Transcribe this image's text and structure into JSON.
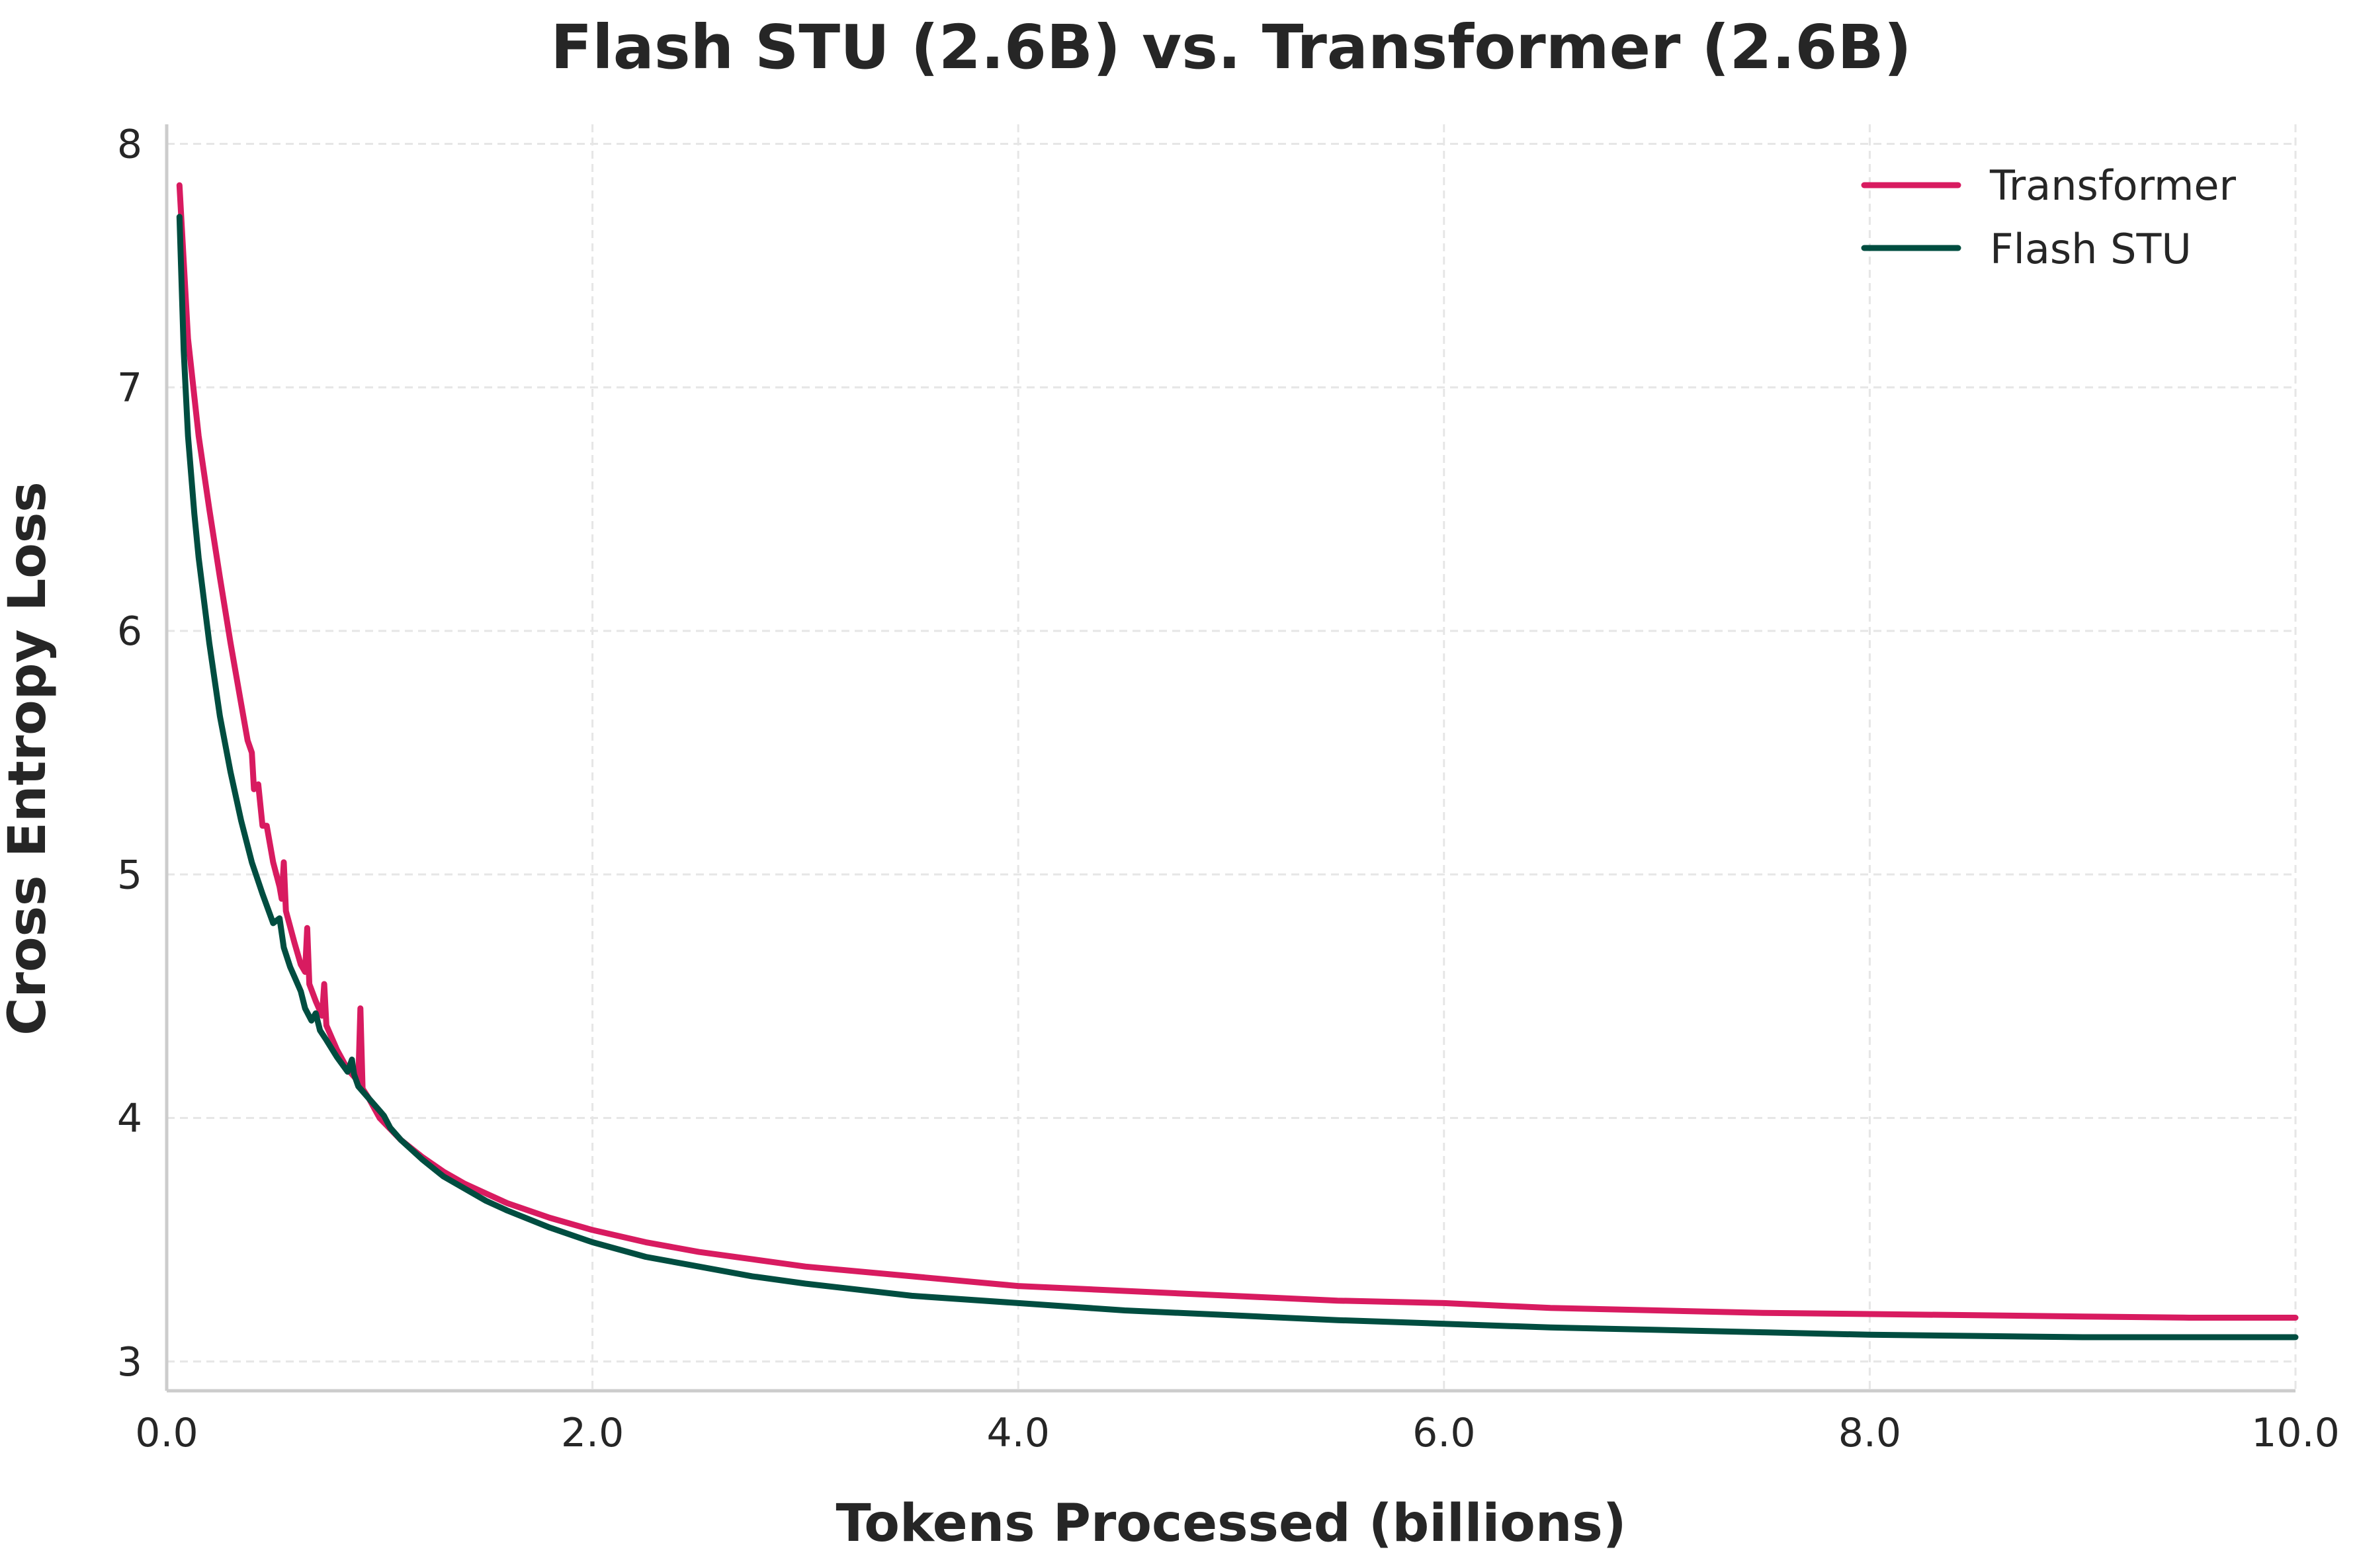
{
  "chart_data": {
    "type": "line",
    "title": "Flash STU (2.6B) vs. Transformer (2.6B)",
    "xlabel": "Tokens Processed (billions)",
    "ylabel": "Cross Entropy Loss",
    "xlim": [
      0,
      10
    ],
    "ylim": [
      2.88,
      8.08
    ],
    "xticks": [
      "0.0",
      "2.0",
      "4.0",
      "6.0",
      "8.0",
      "10.0"
    ],
    "xtick_values": [
      0,
      2,
      4,
      6,
      8,
      10
    ],
    "yticks": [
      "3",
      "4",
      "5",
      "6",
      "7",
      "8"
    ],
    "ytick_values": [
      3,
      4,
      5,
      6,
      7,
      8
    ],
    "grid": true,
    "legend_position": "top-right",
    "series": [
      {
        "name": "Transformer",
        "color": "#d81b60",
        "points": [
          [
            0.06,
            7.83
          ],
          [
            0.1,
            7.2
          ],
          [
            0.15,
            6.8
          ],
          [
            0.2,
            6.5
          ],
          [
            0.25,
            6.22
          ],
          [
            0.3,
            5.95
          ],
          [
            0.35,
            5.7
          ],
          [
            0.38,
            5.55
          ],
          [
            0.4,
            5.5
          ],
          [
            0.41,
            5.35
          ],
          [
            0.43,
            5.37
          ],
          [
            0.45,
            5.2
          ],
          [
            0.47,
            5.2
          ],
          [
            0.5,
            5.05
          ],
          [
            0.53,
            4.95
          ],
          [
            0.54,
            4.9
          ],
          [
            0.55,
            5.05
          ],
          [
            0.56,
            4.85
          ],
          [
            0.6,
            4.72
          ],
          [
            0.63,
            4.63
          ],
          [
            0.65,
            4.6
          ],
          [
            0.66,
            4.78
          ],
          [
            0.67,
            4.55
          ],
          [
            0.7,
            4.48
          ],
          [
            0.73,
            4.42
          ],
          [
            0.74,
            4.55
          ],
          [
            0.75,
            4.38
          ],
          [
            0.8,
            4.28
          ],
          [
            0.85,
            4.2
          ],
          [
            0.88,
            4.17
          ],
          [
            0.9,
            4.15
          ],
          [
            0.91,
            4.45
          ],
          [
            0.92,
            4.12
          ],
          [
            0.95,
            4.08
          ],
          [
            1.0,
            4.0
          ],
          [
            1.1,
            3.91
          ],
          [
            1.2,
            3.84
          ],
          [
            1.3,
            3.78
          ],
          [
            1.4,
            3.73
          ],
          [
            1.5,
            3.69
          ],
          [
            1.6,
            3.65
          ],
          [
            1.8,
            3.59
          ],
          [
            2.0,
            3.54
          ],
          [
            2.25,
            3.49
          ],
          [
            2.5,
            3.45
          ],
          [
            2.75,
            3.42
          ],
          [
            3.0,
            3.39
          ],
          [
            3.5,
            3.35
          ],
          [
            4.0,
            3.31
          ],
          [
            4.5,
            3.29
          ],
          [
            5.0,
            3.27
          ],
          [
            5.5,
            3.25
          ],
          [
            6.0,
            3.24
          ],
          [
            6.5,
            3.22
          ],
          [
            7.0,
            3.21
          ],
          [
            7.5,
            3.2
          ],
          [
            8.0,
            3.195
          ],
          [
            8.5,
            3.19
          ],
          [
            9.0,
            3.185
          ],
          [
            9.5,
            3.18
          ],
          [
            10.0,
            3.18
          ]
        ]
      },
      {
        "name": "Flash STU",
        "color": "#004d40",
        "points": [
          [
            0.06,
            7.7
          ],
          [
            0.08,
            7.15
          ],
          [
            0.1,
            6.8
          ],
          [
            0.13,
            6.48
          ],
          [
            0.15,
            6.3
          ],
          [
            0.2,
            5.95
          ],
          [
            0.25,
            5.65
          ],
          [
            0.3,
            5.42
          ],
          [
            0.35,
            5.22
          ],
          [
            0.4,
            5.05
          ],
          [
            0.45,
            4.92
          ],
          [
            0.5,
            4.8
          ],
          [
            0.53,
            4.82
          ],
          [
            0.55,
            4.7
          ],
          [
            0.58,
            4.62
          ],
          [
            0.6,
            4.58
          ],
          [
            0.63,
            4.52
          ],
          [
            0.65,
            4.45
          ],
          [
            0.68,
            4.4
          ],
          [
            0.7,
            4.43
          ],
          [
            0.72,
            4.36
          ],
          [
            0.75,
            4.32
          ],
          [
            0.8,
            4.25
          ],
          [
            0.85,
            4.19
          ],
          [
            0.87,
            4.24
          ],
          [
            0.88,
            4.18
          ],
          [
            0.9,
            4.13
          ],
          [
            0.95,
            4.08
          ],
          [
            1.0,
            4.03
          ],
          [
            1.02,
            4.01
          ],
          [
            1.05,
            3.96
          ],
          [
            1.1,
            3.91
          ],
          [
            1.2,
            3.83
          ],
          [
            1.3,
            3.76
          ],
          [
            1.4,
            3.71
          ],
          [
            1.5,
            3.66
          ],
          [
            1.6,
            3.62
          ],
          [
            1.8,
            3.55
          ],
          [
            2.0,
            3.49
          ],
          [
            2.25,
            3.43
          ],
          [
            2.5,
            3.39
          ],
          [
            2.75,
            3.35
          ],
          [
            3.0,
            3.32
          ],
          [
            3.5,
            3.27
          ],
          [
            4.0,
            3.24
          ],
          [
            4.5,
            3.21
          ],
          [
            5.0,
            3.19
          ],
          [
            5.5,
            3.17
          ],
          [
            6.0,
            3.155
          ],
          [
            6.5,
            3.14
          ],
          [
            7.0,
            3.13
          ],
          [
            7.5,
            3.12
          ],
          [
            8.0,
            3.11
          ],
          [
            8.5,
            3.105
          ],
          [
            9.0,
            3.1
          ],
          [
            9.5,
            3.1
          ],
          [
            10.0,
            3.1
          ]
        ]
      }
    ]
  }
}
